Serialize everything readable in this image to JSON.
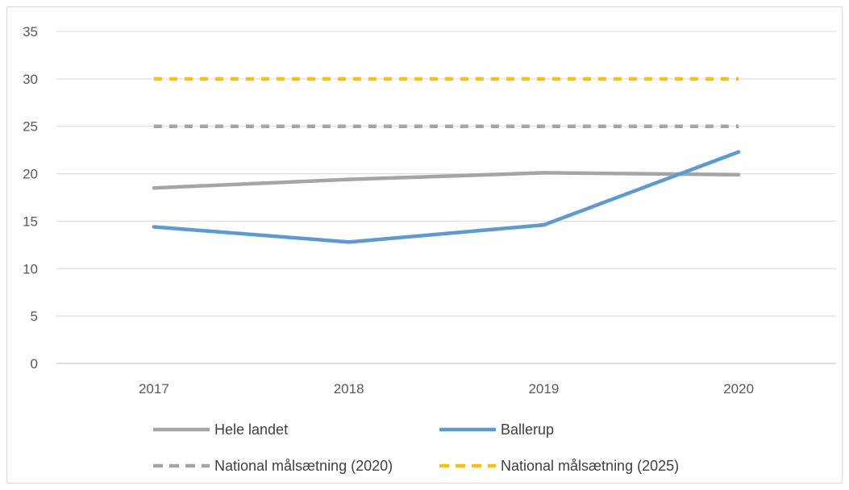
{
  "chart_data": {
    "type": "line",
    "title": "",
    "xlabel": "",
    "ylabel": "",
    "categories": [
      "2017",
      "2018",
      "2019",
      "2020"
    ],
    "ylim": [
      0,
      35
    ],
    "yticks": [
      0,
      5,
      10,
      15,
      20,
      25,
      30,
      35
    ],
    "grid": true,
    "legend_position": "bottom",
    "series": [
      {
        "name": "Hele landet",
        "values": [
          18.5,
          19.4,
          20.1,
          19.9
        ],
        "color": "#a5a5a5",
        "style": "solid"
      },
      {
        "name": "Ballerup",
        "values": [
          14.4,
          12.8,
          14.6,
          22.3
        ],
        "color": "#5b9bd5",
        "style": "solid"
      },
      {
        "name": "National målsætning (2020)",
        "values": [
          25,
          25,
          25,
          25
        ],
        "color": "#a5a5a5",
        "style": "dashed"
      },
      {
        "name": "National målsætning (2025)",
        "values": [
          30,
          30,
          30,
          30
        ],
        "color": "#ffc000",
        "style": "dashed"
      }
    ]
  }
}
